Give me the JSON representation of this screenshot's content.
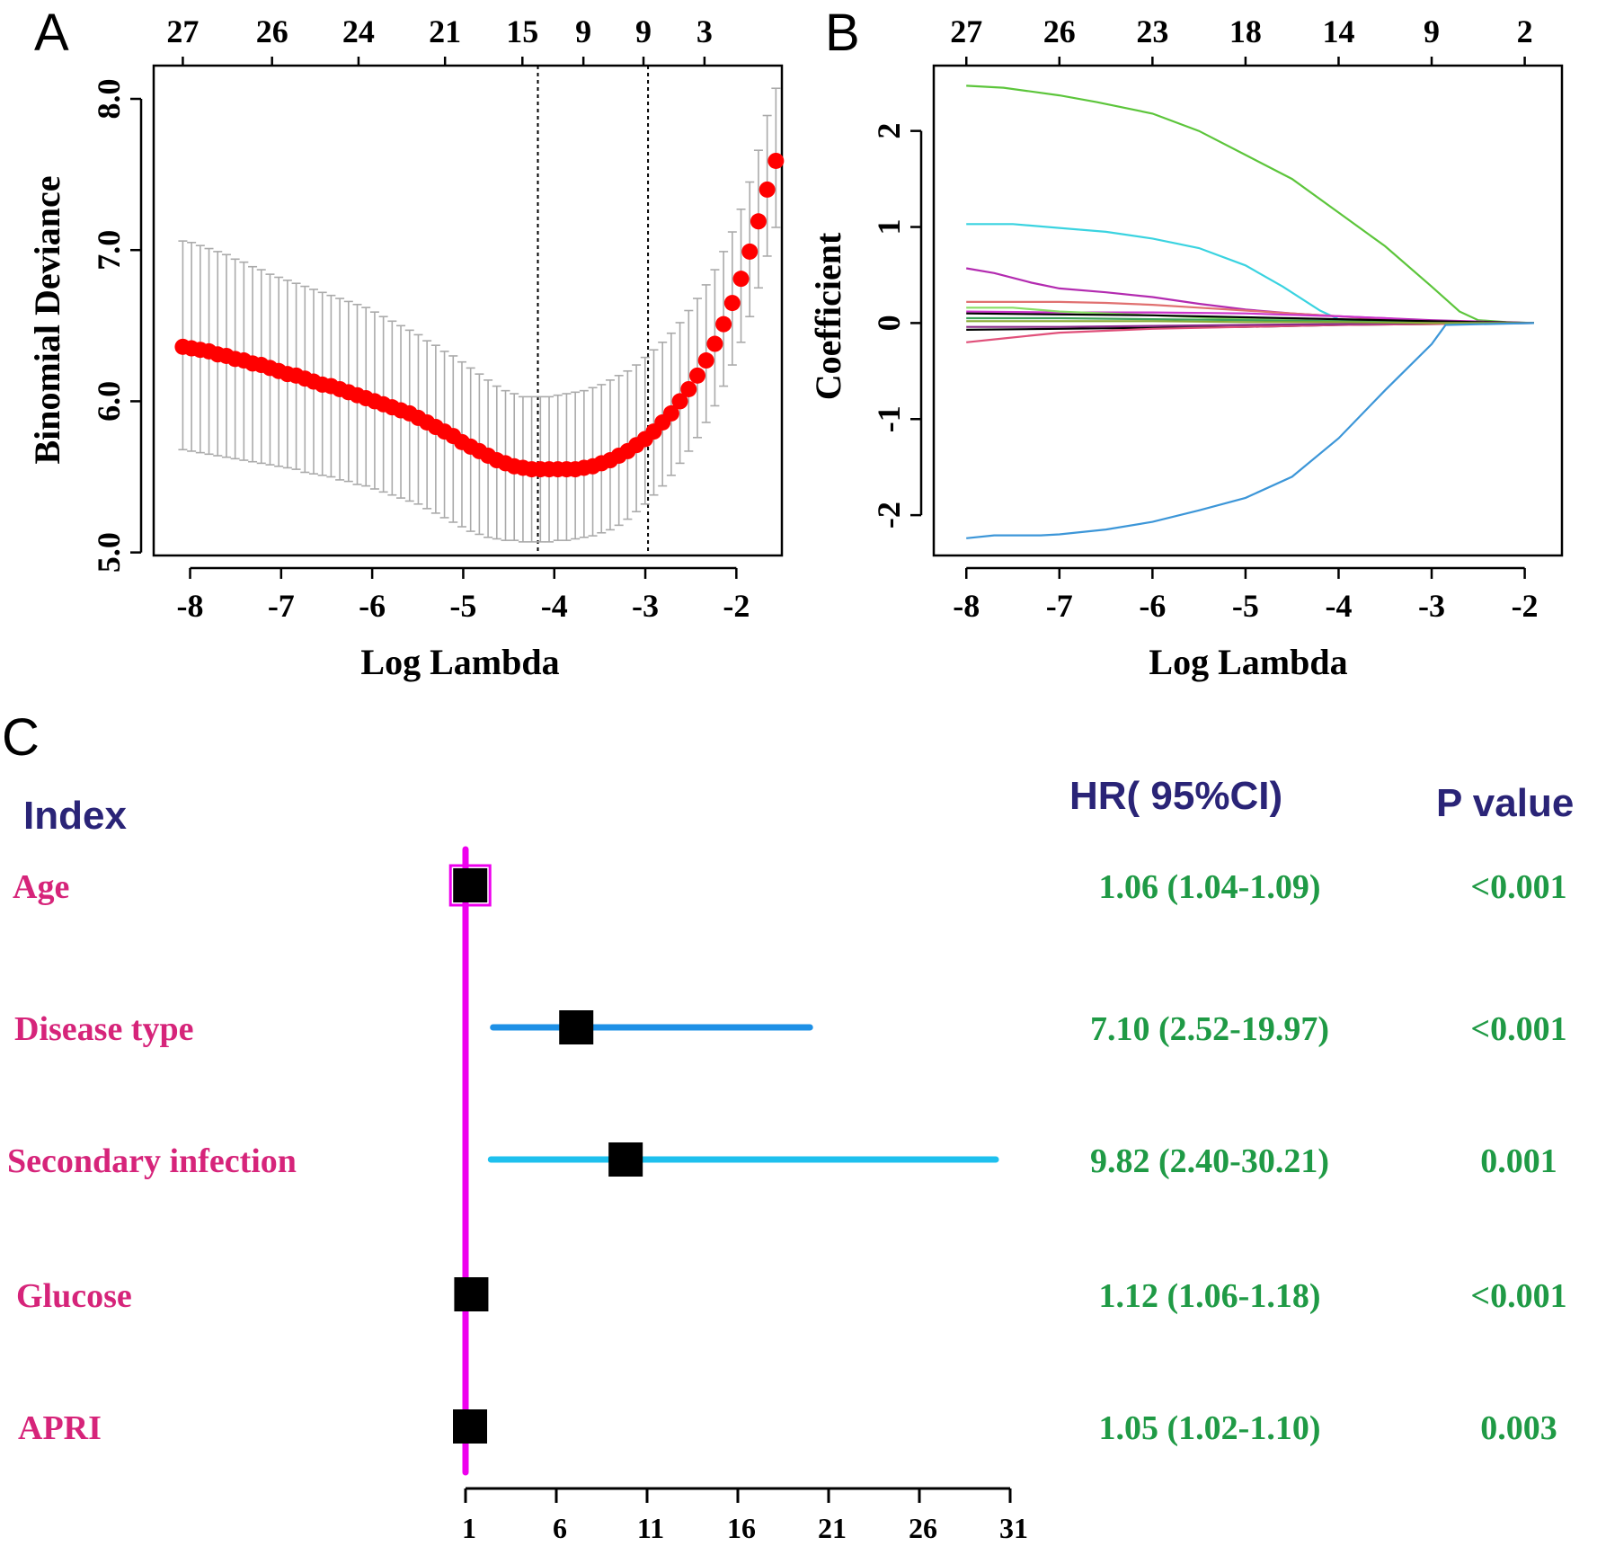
{
  "colors": {
    "deviance_point": "#ff0000",
    "error_bar": "#aaaaaa",
    "ref_line": "#ee00ee",
    "ci_disease_type": "#1e90e6",
    "ci_secondary_infection": "#1ec0ee",
    "marker": "#000000",
    "row_label": "#d6247a",
    "hr_value": "#1f9a45",
    "header": "#2a2477"
  },
  "chart_data": [
    {
      "id": "A",
      "panel_label": "A",
      "type": "scatter",
      "title": "",
      "xlabel": "Log Lambda",
      "ylabel": "Binomial Deviance",
      "xlim": [
        -8.4,
        -1.5
      ],
      "ylim": [
        4.98,
        8.22
      ],
      "x_ticks": [
        "-8",
        "-7",
        "-6",
        "-5",
        "-4",
        "-3",
        "-2"
      ],
      "y_ticks": [
        "5.0",
        "6.0",
        "7.0",
        "8.0"
      ],
      "top_ticks": [
        {
          "x": -8.08,
          "label": "27"
        },
        {
          "x": -7.1,
          "label": "26"
        },
        {
          "x": -6.15,
          "label": "24"
        },
        {
          "x": -5.2,
          "label": "21"
        },
        {
          "x": -4.35,
          "label": "15"
        },
        {
          "x": -3.68,
          "label": "9"
        },
        {
          "x": -3.02,
          "label": "9"
        },
        {
          "x": -2.35,
          "label": "3"
        }
      ],
      "vlines": [
        -4.18,
        -2.97
      ],
      "series": [
        {
          "name": "Cross-validated binomial deviance",
          "x_start": -8.08,
          "x_step": 0.0958,
          "mean": [
            6.36,
            6.35,
            6.34,
            6.33,
            6.31,
            6.3,
            6.28,
            6.27,
            6.25,
            6.24,
            6.22,
            6.2,
            6.18,
            6.17,
            6.15,
            6.13,
            6.11,
            6.1,
            6.08,
            6.06,
            6.04,
            6.02,
            6.0,
            5.98,
            5.96,
            5.94,
            5.92,
            5.89,
            5.86,
            5.83,
            5.8,
            5.77,
            5.73,
            5.7,
            5.67,
            5.64,
            5.61,
            5.59,
            5.57,
            5.56,
            5.55,
            5.55,
            5.55,
            5.55,
            5.55,
            5.55,
            5.56,
            5.57,
            5.59,
            5.61,
            5.64,
            5.67,
            5.71,
            5.75,
            5.8,
            5.86,
            5.92,
            6.0,
            6.08,
            6.17,
            6.27,
            6.38,
            6.51,
            6.65,
            6.81,
            6.99,
            7.19,
            7.4,
            7.59
          ],
          "upper": [
            7.06,
            7.05,
            7.03,
            7.01,
            6.99,
            6.97,
            6.94,
            6.92,
            6.89,
            6.87,
            6.84,
            6.82,
            6.8,
            6.78,
            6.76,
            6.74,
            6.72,
            6.7,
            6.68,
            6.66,
            6.64,
            6.62,
            6.59,
            6.56,
            6.53,
            6.5,
            6.47,
            6.44,
            6.4,
            6.37,
            6.33,
            6.3,
            6.26,
            6.22,
            6.18,
            6.14,
            6.1,
            6.07,
            6.05,
            6.03,
            6.03,
            6.03,
            6.03,
            6.04,
            6.05,
            6.06,
            6.07,
            6.09,
            6.11,
            6.14,
            6.17,
            6.2,
            6.24,
            6.29,
            6.34,
            6.39,
            6.45,
            6.52,
            6.6,
            6.68,
            6.77,
            6.87,
            6.99,
            7.12,
            7.27,
            7.45,
            7.66,
            7.89,
            8.07
          ],
          "lower": [
            5.68,
            5.67,
            5.66,
            5.65,
            5.64,
            5.63,
            5.62,
            5.61,
            5.6,
            5.59,
            5.58,
            5.57,
            5.56,
            5.55,
            5.53,
            5.52,
            5.51,
            5.5,
            5.48,
            5.47,
            5.45,
            5.44,
            5.42,
            5.4,
            5.38,
            5.36,
            5.34,
            5.32,
            5.29,
            5.26,
            5.23,
            5.2,
            5.17,
            5.14,
            5.12,
            5.1,
            5.09,
            5.08,
            5.08,
            5.07,
            5.07,
            5.07,
            5.07,
            5.08,
            5.08,
            5.09,
            5.1,
            5.11,
            5.13,
            5.15,
            5.18,
            5.22,
            5.27,
            5.32,
            5.38,
            5.44,
            5.51,
            5.59,
            5.67,
            5.76,
            5.86,
            5.97,
            6.1,
            6.24,
            6.39,
            6.56,
            6.75,
            6.96,
            7.15
          ]
        }
      ]
    },
    {
      "id": "B",
      "panel_label": "B",
      "type": "line",
      "title": "",
      "xlabel": "Log Lambda",
      "ylabel": "Coefficient",
      "xlim": [
        -8.35,
        -1.6
      ],
      "ylim": [
        -2.42,
        2.68
      ],
      "x_ticks": [
        "-8",
        "-7",
        "-6",
        "-5",
        "-4",
        "-3",
        "-2"
      ],
      "y_ticks": [
        "-2",
        "-1",
        "0",
        "1",
        "2"
      ],
      "top_ticks": [
        {
          "x": -8.0,
          "label": "27"
        },
        {
          "x": -7.0,
          "label": "26"
        },
        {
          "x": -6.0,
          "label": "23"
        },
        {
          "x": -5.0,
          "label": "18"
        },
        {
          "x": -4.0,
          "label": "14"
        },
        {
          "x": -3.0,
          "label": "9"
        },
        {
          "x": -2.0,
          "label": "2"
        }
      ],
      "series": [
        {
          "name": "path-green",
          "color": "#5cc53b",
          "x": [
            -8.0,
            -7.6,
            -7.0,
            -6.6,
            -6.0,
            -5.5,
            -5.0,
            -4.5,
            -4.0,
            -3.5,
            -3.0,
            -2.7,
            -2.5,
            -2.2,
            -1.9
          ],
          "y": [
            2.47,
            2.45,
            2.37,
            2.3,
            2.18,
            2.0,
            1.75,
            1.5,
            1.15,
            0.8,
            0.38,
            0.12,
            0.03,
            0.01,
            0
          ]
        },
        {
          "name": "path-cyan",
          "color": "#3ad3e0",
          "x": [
            -8.0,
            -7.5,
            -7.0,
            -6.5,
            -6.0,
            -5.5,
            -5.0,
            -4.6,
            -4.2,
            -4.0,
            -3.5,
            -1.9
          ],
          "y": [
            1.03,
            1.03,
            0.99,
            0.95,
            0.88,
            0.78,
            0.6,
            0.38,
            0.13,
            0.04,
            0.0,
            0
          ]
        },
        {
          "name": "path-purple",
          "color": "#b32bb0",
          "x": [
            -8.0,
            -7.7,
            -7.3,
            -7.0,
            -6.5,
            -6.0,
            -5.5,
            -5.0,
            -4.5,
            -4.0,
            -3.5,
            -3.0,
            -1.9
          ],
          "y": [
            0.57,
            0.52,
            0.42,
            0.36,
            0.32,
            0.27,
            0.2,
            0.14,
            0.1,
            0.07,
            0.05,
            0.03,
            0
          ]
        },
        {
          "name": "path-salmon",
          "color": "#e07070",
          "x": [
            -8.0,
            -7.5,
            -7.0,
            -6.5,
            -6.0,
            -5.5,
            -5.0,
            -4.5,
            -4.0,
            -3.5,
            -3.0,
            -1.9
          ],
          "y": [
            0.22,
            0.22,
            0.22,
            0.21,
            0.19,
            0.16,
            0.13,
            0.1,
            0.07,
            0.04,
            0.02,
            0
          ]
        },
        {
          "name": "path-magenta",
          "color": "#cc33cc",
          "x": [
            -8.0,
            -7.0,
            -6.0,
            -5.0,
            -4.0,
            -3.5,
            -3.0,
            -1.9
          ],
          "y": [
            0.12,
            0.11,
            0.11,
            0.1,
            0.07,
            0.05,
            0.02,
            0
          ]
        },
        {
          "name": "path-lightgreen",
          "color": "#88dd66",
          "x": [
            -8.0,
            -7.5,
            -7.0,
            -6.0,
            -5.0,
            -4.0,
            -1.9
          ],
          "y": [
            0.16,
            0.16,
            0.12,
            0.08,
            0.04,
            0.02,
            0
          ]
        },
        {
          "name": "path-darkgreen",
          "color": "#3aa25a",
          "x": [
            -8.0,
            -7.0,
            -6.0,
            -5.0,
            -4.0,
            -3.0,
            -1.9
          ],
          "y": [
            0.05,
            0.05,
            0.04,
            0.03,
            0.02,
            0.01,
            0
          ]
        },
        {
          "name": "path-black-a",
          "color": "#000000",
          "x": [
            -8.0,
            -7.0,
            -6.0,
            -5.0,
            -4.0,
            -3.0,
            -2.5,
            -1.9
          ],
          "y": [
            0.1,
            0.09,
            0.08,
            0.06,
            0.04,
            0.02,
            0.01,
            0
          ]
        },
        {
          "name": "path-black-b",
          "color": "#000000",
          "x": [
            -8.0,
            -7.0,
            -6.0,
            -5.0,
            -4.0,
            -3.0,
            -1.9
          ],
          "y": [
            -0.07,
            -0.06,
            -0.05,
            -0.04,
            -0.02,
            -0.01,
            0
          ]
        },
        {
          "name": "path-pink",
          "color": "#e0507a",
          "x": [
            -8.0,
            -7.6,
            -7.0,
            -6.0,
            -5.0,
            -4.0,
            -3.0,
            -1.9
          ],
          "y": [
            -0.2,
            -0.16,
            -0.1,
            -0.06,
            -0.04,
            -0.02,
            -0.01,
            0
          ]
        },
        {
          "name": "path-darkpurple",
          "color": "#8a2c8a",
          "x": [
            -8.0,
            -7.0,
            -6.0,
            -5.0,
            -4.0,
            -3.0,
            -1.9
          ],
          "y": [
            -0.04,
            -0.04,
            -0.03,
            -0.02,
            -0.01,
            0,
            0
          ]
        },
        {
          "name": "path-olive",
          "color": "#88aa33",
          "x": [
            -8.0,
            -7.0,
            -6.0,
            -5.0,
            -4.0,
            -3.0,
            -1.9
          ],
          "y": [
            0.02,
            0.02,
            0.02,
            0.01,
            0.01,
            0,
            0
          ]
        },
        {
          "name": "path-blue",
          "color": "#3c96d8",
          "x": [
            -8.0,
            -7.7,
            -7.2,
            -7.0,
            -6.5,
            -6.0,
            -5.5,
            -5.0,
            -4.5,
            -4.0,
            -3.5,
            -3.0,
            -2.85,
            -1.9
          ],
          "y": [
            -2.24,
            -2.21,
            -2.21,
            -2.2,
            -2.15,
            -2.07,
            -1.95,
            -1.82,
            -1.6,
            -1.2,
            -0.7,
            -0.22,
            -0.02,
            0
          ]
        }
      ]
    },
    {
      "id": "C",
      "panel_label": "C",
      "type": "forest",
      "title": "",
      "xlabel": "",
      "xlim": [
        1,
        31
      ],
      "x_ticks": [
        1,
        6,
        11,
        16,
        21,
        26,
        31
      ],
      "ref_x": 1,
      "headers": {
        "index": "Index",
        "hr": "HR( 95%CI)",
        "p": "P value"
      },
      "rows": [
        {
          "label": "Age",
          "hr": 1.06,
          "lo": 1.04,
          "hi": 1.09,
          "hr_text": "1.06 (1.04-1.09)",
          "p_text": "<0.001"
        },
        {
          "label": "Disease type",
          "hr": 7.1,
          "lo": 2.52,
          "hi": 19.97,
          "hr_text": "7.10 (2.52-19.97)",
          "p_text": "<0.001"
        },
        {
          "label": "Secondary infection",
          "hr": 9.82,
          "lo": 2.4,
          "hi": 30.21,
          "hr_text": "9.82 (2.40-30.21)",
          "p_text": "0.001"
        },
        {
          "label": "Glucose",
          "hr": 1.12,
          "lo": 1.06,
          "hi": 1.18,
          "hr_text": "1.12 (1.06-1.18)",
          "p_text": "<0.001"
        },
        {
          "label": "APRI",
          "hr": 1.05,
          "lo": 1.02,
          "hi": 1.1,
          "hr_text": "1.05 (1.02-1.10)",
          "p_text": "0.003"
        }
      ]
    }
  ]
}
